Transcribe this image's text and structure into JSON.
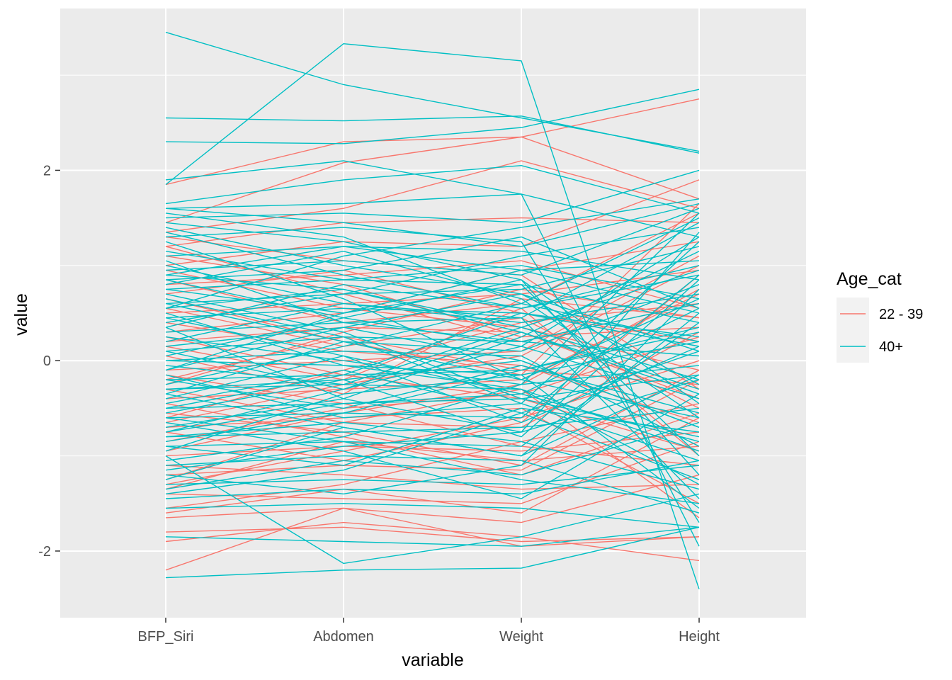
{
  "chart_data": {
    "type": "line",
    "subtype": "parallel-coordinates",
    "xlabel": "variable",
    "ylabel": "value",
    "categories": [
      "BFP_Siri",
      "Abdomen",
      "Weight",
      "Height"
    ],
    "y_ticks": [
      "2",
      "0",
      "-2"
    ],
    "y_tick_values": [
      2,
      0,
      -2
    ],
    "ylim": [
      -2.7,
      3.7
    ],
    "grid": true,
    "legend": {
      "title": "Age_cat",
      "position": "right",
      "entries": [
        {
          "label": "22 - 39",
          "color": "#F8766D"
        },
        {
          "label": "40+",
          "color": "#00BFC4"
        }
      ]
    },
    "colors": {
      "panel_background": "#EBEBEB",
      "grid": "#FFFFFF",
      "22 - 39": "#F8766D",
      "40+": "#00BFC4"
    },
    "series": [
      {
        "group": "40+",
        "values": [
          3.45,
          2.9,
          2.55,
          2.2
        ]
      },
      {
        "group": "40+",
        "values": [
          1.85,
          3.33,
          3.15,
          -2.4
        ]
      },
      {
        "group": "40+",
        "values": [
          2.55,
          2.52,
          2.57,
          2.18
        ]
      },
      {
        "group": "40+",
        "values": [
          2.3,
          2.28,
          2.45,
          2.85
        ]
      },
      {
        "group": "22 - 39",
        "values": [
          1.85,
          2.3,
          2.35,
          2.75
        ]
      },
      {
        "group": "40+",
        "values": [
          1.9,
          2.1,
          1.75,
          1.3
        ]
      },
      {
        "group": "22 - 39",
        "values": [
          1.45,
          2.08,
          2.35,
          1.7
        ]
      },
      {
        "group": "40+",
        "values": [
          1.65,
          1.9,
          2.05,
          1.55
        ]
      },
      {
        "group": "40+",
        "values": [
          1.6,
          1.65,
          1.75,
          -1.95
        ]
      },
      {
        "group": "22 - 39",
        "values": [
          1.35,
          1.6,
          2.1,
          1.6
        ]
      },
      {
        "group": "40+",
        "values": [
          1.5,
          1.55,
          1.45,
          2.0
        ]
      },
      {
        "group": "22 - 39",
        "values": [
          1.2,
          1.45,
          1.5,
          1.45
        ]
      },
      {
        "group": "40+",
        "values": [
          1.3,
          1.4,
          1.25,
          -1.7
        ]
      },
      {
        "group": "22 - 39",
        "values": [
          1.0,
          1.25,
          1.2,
          1.9
        ]
      },
      {
        "group": "40+",
        "values": [
          1.1,
          1.2,
          1.15,
          0.85
        ]
      },
      {
        "group": "40+",
        "values": [
          0.95,
          1.05,
          0.9,
          1.6
        ]
      },
      {
        "group": "22 - 39",
        "values": [
          0.8,
          0.9,
          1.05,
          0.55
        ]
      },
      {
        "group": "40+",
        "values": [
          0.75,
          0.85,
          0.8,
          -1.0
        ]
      },
      {
        "group": "40+",
        "values": [
          0.6,
          0.7,
          0.75,
          1.2
        ]
      },
      {
        "group": "22 - 39",
        "values": [
          0.5,
          0.6,
          0.7,
          0.95
        ]
      },
      {
        "group": "40+",
        "values": [
          0.45,
          0.55,
          0.5,
          0.15
        ]
      },
      {
        "group": "40+",
        "values": [
          0.3,
          0.4,
          0.45,
          1.45
        ]
      },
      {
        "group": "22 - 39",
        "values": [
          0.2,
          0.35,
          0.3,
          -0.4
        ]
      },
      {
        "group": "40+",
        "values": [
          0.1,
          0.25,
          0.2,
          0.6
        ]
      },
      {
        "group": "40+",
        "values": [
          0.0,
          0.1,
          0.05,
          -0.9
        ]
      },
      {
        "group": "22 - 39",
        "values": [
          -0.1,
          0.0,
          0.1,
          1.1
        ]
      },
      {
        "group": "40+",
        "values": [
          -0.2,
          -0.15,
          -0.1,
          0.3
        ]
      },
      {
        "group": "40+",
        "values": [
          -0.3,
          -0.25,
          -0.3,
          -1.3
        ]
      },
      {
        "group": "22 - 39",
        "values": [
          -0.4,
          -0.3,
          -0.2,
          0.7
        ]
      },
      {
        "group": "40+",
        "values": [
          -0.5,
          -0.45,
          -0.4,
          -0.15
        ]
      },
      {
        "group": "40+",
        "values": [
          -0.6,
          -0.55,
          -0.6,
          0.9
        ]
      },
      {
        "group": "22 - 39",
        "values": [
          -0.7,
          -0.6,
          -0.5,
          -1.5
        ]
      },
      {
        "group": "40+",
        "values": [
          -0.8,
          -0.75,
          -0.7,
          -0.5
        ]
      },
      {
        "group": "40+",
        "values": [
          -0.9,
          -0.85,
          -0.9,
          0.4
        ]
      },
      {
        "group": "22 - 39",
        "values": [
          -1.0,
          -0.9,
          -0.95,
          -0.75
        ]
      },
      {
        "group": "40+",
        "values": [
          -1.1,
          -1.0,
          -1.05,
          -1.6
        ]
      },
      {
        "group": "22 - 39",
        "values": [
          -1.2,
          -1.1,
          -1.15,
          -0.2
        ]
      },
      {
        "group": "40+",
        "values": [
          -1.3,
          -1.25,
          -1.3,
          -1.1
        ]
      },
      {
        "group": "22 - 39",
        "values": [
          -1.4,
          -1.45,
          -1.5,
          -0.85
        ]
      },
      {
        "group": "40+",
        "values": [
          -1.55,
          -1.5,
          -1.55,
          -1.75
        ]
      },
      {
        "group": "22 - 39",
        "values": [
          -1.65,
          -1.55,
          -1.7,
          -1.2
        ]
      },
      {
        "group": "22 - 39",
        "values": [
          -1.8,
          -1.75,
          -1.9,
          -1.85
        ]
      },
      {
        "group": "40+",
        "values": [
          -1.85,
          -1.9,
          -1.95,
          -1.75
        ]
      },
      {
        "group": "22 - 39",
        "values": [
          -1.9,
          -1.7,
          -1.85,
          -2.1
        ]
      },
      {
        "group": "22 - 39",
        "values": [
          -2.2,
          -1.55,
          -1.95,
          -1.85
        ]
      },
      {
        "group": "40+",
        "values": [
          -2.28,
          -2.2,
          -2.18,
          -1.75
        ]
      },
      {
        "group": "40+",
        "values": [
          -1.0,
          -2.13,
          -1.85,
          -1.4
        ]
      },
      {
        "group": "40+",
        "values": [
          0.9,
          0.75,
          0.3,
          -0.3
        ]
      },
      {
        "group": "22 - 39",
        "values": [
          0.65,
          0.2,
          -0.15,
          1.65
        ]
      },
      {
        "group": "40+",
        "values": [
          -0.1,
          0.5,
          0.95,
          1.05
        ]
      },
      {
        "group": "40+",
        "values": [
          1.25,
          0.65,
          -0.2,
          -0.6
        ]
      },
      {
        "group": "22 - 39",
        "values": [
          -0.6,
          -0.1,
          0.4,
          0.6
        ]
      },
      {
        "group": "40+",
        "values": [
          0.35,
          -0.4,
          -0.75,
          1.35
        ]
      },
      {
        "group": "22 - 39",
        "values": [
          -1.3,
          -0.95,
          -0.6,
          0.0
        ]
      },
      {
        "group": "40+",
        "values": [
          0.55,
          1.1,
          1.4,
          1.7
        ]
      },
      {
        "group": "40+",
        "values": [
          -0.35,
          -0.7,
          -1.0,
          0.5
        ]
      },
      {
        "group": "22 - 39",
        "values": [
          0.15,
          -0.2,
          0.55,
          -1.0
        ]
      },
      {
        "group": "40+",
        "values": [
          -0.75,
          -0.3,
          0.15,
          -0.4
        ]
      },
      {
        "group": "40+",
        "values": [
          1.55,
          1.3,
          0.6,
          0.2
        ]
      },
      {
        "group": "22 - 39",
        "values": [
          -0.45,
          -0.8,
          -1.2,
          -0.55
        ]
      },
      {
        "group": "40+",
        "values": [
          0.05,
          0.45,
          0.85,
          -1.2
        ]
      },
      {
        "group": "40+",
        "values": [
          -1.2,
          -1.4,
          -1.1,
          0.75
        ]
      },
      {
        "group": "22 - 39",
        "values": [
          1.1,
          0.8,
          0.25,
          0.35
        ]
      },
      {
        "group": "40+",
        "values": [
          0.7,
          0.3,
          -0.4,
          -0.8
        ]
      },
      {
        "group": "40+",
        "values": [
          -0.25,
          0.15,
          0.6,
          1.5
        ]
      },
      {
        "group": "22 - 39",
        "values": [
          -0.85,
          -0.5,
          -0.35,
          0.25
        ]
      },
      {
        "group": "40+",
        "values": [
          0.25,
          0.0,
          -0.25,
          -0.05
        ]
      },
      {
        "group": "40+",
        "values": [
          -0.55,
          -0.2,
          -0.8,
          0.85
        ]
      },
      {
        "group": "22 - 39",
        "values": [
          0.4,
          0.1,
          -0.05,
          -0.65
        ]
      },
      {
        "group": "40+",
        "values": [
          -1.4,
          -1.15,
          -0.55,
          0.1
        ]
      },
      {
        "group": "40+",
        "values": [
          1.4,
          1.0,
          0.7,
          -0.25
        ]
      },
      {
        "group": "22 - 39",
        "values": [
          -1.55,
          -1.3,
          -0.85,
          -0.45
        ]
      },
      {
        "group": "40+",
        "values": [
          0.85,
          0.95,
          1.3,
          0.55
        ]
      },
      {
        "group": "40+",
        "values": [
          -0.65,
          -0.95,
          -1.45,
          -0.35
        ]
      },
      {
        "group": "22 - 39",
        "values": [
          0.95,
          0.55,
          0.35,
          -0.1
        ]
      },
      {
        "group": "40+",
        "values": [
          -0.15,
          -0.6,
          -0.45,
          1.25
        ]
      },
      {
        "group": "40+",
        "values": [
          1.0,
          0.6,
          0.45,
          -1.45
        ]
      },
      {
        "group": "22 - 39",
        "values": [
          -0.25,
          0.3,
          0.75,
          0.45
        ]
      },
      {
        "group": "40+",
        "values": [
          -1.05,
          -0.8,
          -0.25,
          1.55
        ]
      },
      {
        "group": "40+",
        "values": [
          0.15,
          0.35,
          0.0,
          -0.7
        ]
      },
      {
        "group": "22 - 39",
        "values": [
          -1.1,
          -1.2,
          -1.35,
          -1.3
        ]
      },
      {
        "group": "40+",
        "values": [
          0.6,
          0.2,
          0.1,
          0.8
        ]
      },
      {
        "group": "40+",
        "values": [
          -0.95,
          -0.35,
          -0.15,
          -1.55
        ]
      },
      {
        "group": "22 - 39",
        "values": [
          0.3,
          0.5,
          0.95,
          1.25
        ]
      },
      {
        "group": "40+",
        "values": [
          -0.4,
          0.05,
          -0.65,
          0.15
        ]
      },
      {
        "group": "40+",
        "values": [
          1.15,
          0.85,
          1.0,
          0.65
        ]
      },
      {
        "group": "22 - 39",
        "values": [
          -0.75,
          -1.05,
          -0.65,
          0.9
        ]
      },
      {
        "group": "40+",
        "values": [
          0.5,
          -0.05,
          -0.3,
          -0.95
        ]
      },
      {
        "group": "40+",
        "values": [
          -1.25,
          -0.7,
          -1.0,
          -0.15
        ]
      },
      {
        "group": "22 - 39",
        "values": [
          1.3,
          1.05,
          0.9,
          -0.3
        ]
      },
      {
        "group": "40+",
        "values": [
          -0.05,
          -0.25,
          0.35,
          0.95
        ]
      },
      {
        "group": "40+",
        "values": [
          0.8,
          1.15,
          0.65,
          -0.6
        ]
      },
      {
        "group": "22 - 39",
        "values": [
          -0.15,
          -0.45,
          -0.9,
          -1.1
        ]
      },
      {
        "group": "40+",
        "values": [
          -0.85,
          -0.55,
          -0.1,
          0.35
        ]
      },
      {
        "group": "40+",
        "values": [
          0.4,
          0.7,
          1.1,
          1.4
        ]
      },
      {
        "group": "22 - 39",
        "values": [
          -1.35,
          -0.85,
          -1.05,
          -0.9
        ]
      },
      {
        "group": "40+",
        "values": [
          1.05,
          0.4,
          0.2,
          0.05
        ]
      },
      {
        "group": "40+",
        "values": [
          -0.45,
          -0.1,
          -0.55,
          -1.25
        ]
      },
      {
        "group": "22 - 39",
        "values": [
          0.7,
          0.95,
          0.5,
          0.2
        ]
      },
      {
        "group": "40+",
        "values": [
          -0.7,
          -0.4,
          0.25,
          1.15
        ]
      },
      {
        "group": "40+",
        "values": [
          1.45,
          1.25,
          0.85,
          -0.45
        ]
      },
      {
        "group": "22 - 39",
        "values": [
          -0.3,
          -0.65,
          -0.3,
          -1.65
        ]
      },
      {
        "group": "40+",
        "values": [
          0.2,
          0.6,
          0.4,
          0.7
        ]
      },
      {
        "group": "40+",
        "values": [
          -1.15,
          -0.9,
          -0.75,
          -0.2
        ]
      },
      {
        "group": "22 - 39",
        "values": [
          0.05,
          -0.35,
          0.65,
          0.45
        ]
      },
      {
        "group": "40+",
        "values": [
          0.65,
          0.25,
          -0.45,
          -1.05
        ]
      },
      {
        "group": "40+",
        "values": [
          -0.5,
          -0.15,
          0.5,
          0.25
        ]
      },
      {
        "group": "22 - 39",
        "values": [
          -0.55,
          -0.75,
          -1.1,
          -0.1
        ]
      },
      {
        "group": "40+",
        "values": [
          0.35,
          0.8,
          0.55,
          1.0
        ]
      },
      {
        "group": "40+",
        "values": [
          -0.9,
          -1.1,
          -0.5,
          -0.75
        ]
      },
      {
        "group": "22 - 39",
        "values": [
          1.2,
          0.7,
          0.2,
          0.6
        ]
      },
      {
        "group": "40+",
        "values": [
          -0.2,
          -0.5,
          -0.05,
          -0.55
        ]
      },
      {
        "group": "40+",
        "values": [
          0.85,
          0.45,
          0.15,
          1.3
        ]
      },
      {
        "group": "22 - 39",
        "values": [
          -1.25,
          -0.65,
          -0.7,
          0.3
        ]
      },
      {
        "group": "40+",
        "values": [
          0.1,
          -0.3,
          0.3,
          -0.35
        ]
      },
      {
        "group": "40+",
        "values": [
          -0.35,
          0.2,
          -0.2,
          0.65
        ]
      },
      {
        "group": "22 - 39",
        "values": [
          0.55,
          0.15,
          0.45,
          -0.5
        ]
      },
      {
        "group": "40+",
        "values": [
          -0.8,
          -0.65,
          -0.85,
          -1.35
        ]
      },
      {
        "group": "40+",
        "values": [
          0.75,
          0.5,
          0.8,
          0.4
        ]
      },
      {
        "group": "22 - 39",
        "values": [
          -0.65,
          -0.25,
          0.05,
          1.0
        ]
      },
      {
        "group": "40+",
        "values": [
          -1.35,
          -1.05,
          -1.2,
          -0.65
        ]
      },
      {
        "group": "40+",
        "values": [
          1.35,
          0.9,
          0.55,
          0.9
        ]
      },
      {
        "group": "22 - 39",
        "values": [
          0.25,
          -0.15,
          -0.4,
          -0.95
        ]
      },
      {
        "group": "40+",
        "values": [
          -0.1,
          0.35,
          0.7,
          0.1
        ]
      },
      {
        "group": "40+",
        "values": [
          0.45,
          0.05,
          -0.35,
          -0.85
        ]
      },
      {
        "group": "22 - 39",
        "values": [
          -0.95,
          -0.55,
          -0.25,
          0.75
        ]
      },
      {
        "group": "40+",
        "values": [
          0.9,
          1.2,
          0.95,
          0.5
        ]
      },
      {
        "group": "40+",
        "values": [
          -0.6,
          -0.85,
          -1.25,
          -1.5
        ]
      },
      {
        "group": "22 - 39",
        "values": [
          0.85,
          0.4,
          0.6,
          1.55
        ]
      },
      {
        "group": "40+",
        "values": [
          -1.45,
          -1.35,
          -1.4,
          -1.05
        ]
      },
      {
        "group": "40+",
        "values": [
          0.0,
          -0.05,
          -0.15,
          0.2
        ]
      },
      {
        "group": "22 - 39",
        "values": [
          -0.2,
          0.25,
          -0.1,
          -0.25
        ]
      },
      {
        "group": "40+",
        "values": [
          1.6,
          1.45,
          1.2,
          1.65
        ]
      },
      {
        "group": "40+",
        "values": [
          -0.3,
          -0.2,
          0.0,
          -0.7
        ]
      },
      {
        "group": "22 - 39",
        "values": [
          -1.6,
          -1.35,
          -1.6,
          -0.6
        ]
      },
      {
        "group": "40+",
        "values": [
          0.55,
          0.75,
          0.35,
          -0.2
        ]
      },
      {
        "group": "40+",
        "values": [
          -0.75,
          -0.45,
          -0.35,
          0.55
        ]
      }
    ]
  }
}
